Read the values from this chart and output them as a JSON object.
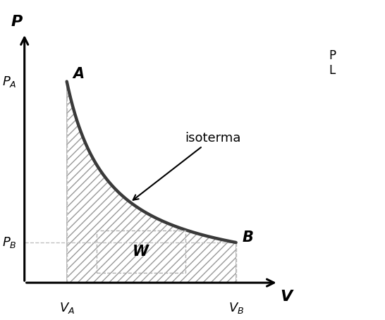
{
  "bg_color": "#ffffff",
  "curve_color": "#3a3a3a",
  "hatch_pattern": "///",
  "V_A": 1.0,
  "V_B": 5.0,
  "P_A": 5.0,
  "P_B": 1.0,
  "C": 5.0,
  "label_P": "P",
  "label_V": "V",
  "label_PA": "$P_A$",
  "label_PB": "$P_B$",
  "label_VA": "$V_A$",
  "label_VB": "$V_B$",
  "label_A": "A",
  "label_B": "B",
  "label_W": "W",
  "label_isoterma": "isoterma",
  "right_text": "P\nL",
  "curve_lw": 3.2,
  "axis_lw": 2.2,
  "x_min": 0,
  "x_max": 6.0,
  "y_min": 0,
  "y_max": 6.2,
  "xlim_left": -0.5,
  "xlim_right": 8.5,
  "ylim_bottom": -0.9,
  "ylim_top": 7.0,
  "arrow_mut_scale": 18
}
